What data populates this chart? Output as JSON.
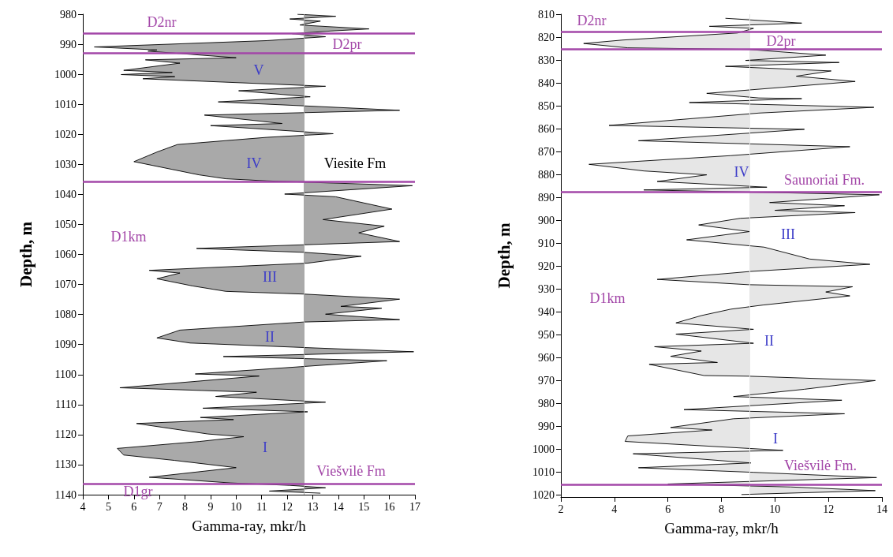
{
  "chart_data": [
    {
      "type": "area",
      "xlabel": "Gamma-ray, mkr/h",
      "ylabel": "Depth, m",
      "xlim": [
        4,
        17
      ],
      "xticks": [
        4,
        5,
        6,
        7,
        8,
        9,
        10,
        11,
        12,
        13,
        14,
        15,
        16,
        17
      ],
      "ylim": [
        1140,
        980
      ],
      "yticks": [
        980,
        990,
        1000,
        1010,
        1020,
        1030,
        1040,
        1050,
        1060,
        1070,
        1080,
        1090,
        1100,
        1110,
        1120,
        1130,
        1140
      ],
      "series": [
        {
          "color": "#a9a9a9",
          "x": [
            12.4,
            13.9,
            12.1,
            13.3,
            12.5,
            15.2,
            13.7,
            12.2,
            13.5,
            11.2,
            4.45,
            6.9,
            6.55,
            10.0,
            6.45,
            7.8,
            5.6,
            7.5,
            5.5,
            7.6,
            6.35,
            12.65,
            13.5,
            10.1,
            12.9,
            9.3,
            16.4,
            8.76,
            11.8,
            9.0,
            13.8,
            11.2,
            7.7,
            6.9,
            6.0,
            8.55,
            9.6,
            11.2,
            16.9,
            11.9,
            13.9,
            16.1,
            13.4,
            15.8,
            14.8,
            16.4,
            8.45,
            12.65,
            14.9,
            12.8,
            6.6,
            7.8,
            6.9,
            8.3,
            9.6,
            12.65,
            16.4,
            14.1,
            15.7,
            13.5,
            16.4,
            12.65,
            7.8,
            6.9,
            8.2,
            12.65,
            16.95,
            9.5,
            15.9,
            12.5,
            8.4,
            10.9,
            9.9,
            5.45,
            10.8,
            9.2,
            13.5,
            8.7,
            12.8,
            8.6,
            9.9,
            6.1,
            8.9,
            10.3,
            8.55,
            5.35,
            5.6,
            7.6,
            10.0,
            6.6,
            9.8,
            12.1,
            13.5,
            11.3,
            13.3
          ],
          "values": [
            980,
            980.7,
            981.6,
            982.3,
            983.6,
            984.9,
            985.6,
            986.5,
            987.5,
            988.8,
            990.9,
            991.9,
            992.3,
            994.5,
            995.2,
            996.3,
            998.7,
            999.4,
            1000.1,
            1000.8,
            1001.5,
            1003.7,
            1004,
            1005.5,
            1007.5,
            1009.2,
            1012,
            1013.6,
            1016.4,
            1017.1,
            1019.8,
            1021,
            1023.4,
            1025.9,
            1029.1,
            1033.5,
            1034.8,
            1035.5,
            1037.1,
            1039.9,
            1040.8,
            1044.9,
            1048.4,
            1050.6,
            1052.8,
            1055.7,
            1058,
            1059.3,
            1060.6,
            1062.9,
            1065.3,
            1066.2,
            1068.1,
            1070.5,
            1072.3,
            1073.2,
            1074.9,
            1077.3,
            1077.9,
            1079.9,
            1081.7,
            1082.5,
            1085.2,
            1087.8,
            1089.5,
            1091,
            1092.4,
            1094,
            1095.4,
            1097.4,
            1099.8,
            1100.5,
            1101.2,
            1104.4,
            1105.9,
            1107.3,
            1109.2,
            1111.2,
            1112.4,
            1114.3,
            1115,
            1116.3,
            1119.8,
            1120.7,
            1122.3,
            1124.6,
            1126.8,
            1128.6,
            1131,
            1134.2,
            1136.1,
            1136.9,
            1137.7,
            1138.8,
            1139.5
          ]
        }
      ],
      "ref_lines": [
        {
          "axis": "x",
          "value": 12.65,
          "color": "#a9a9a9"
        },
        {
          "axis": "y",
          "value": 986.3,
          "color": "#a347a8"
        },
        {
          "axis": "y",
          "value": 993,
          "color": "#a347a8"
        },
        {
          "axis": "y",
          "value": 1035.7,
          "color": "#a347a8"
        },
        {
          "axis": "y",
          "value": 1136.4,
          "color": "#a347a8"
        }
      ],
      "annotations": [
        "D2nr",
        "D2pr",
        "V",
        "IV",
        "Viesite Fm",
        "D1km",
        "III",
        "II",
        "I",
        "Viešvilė Fm",
        "D1gr"
      ]
    },
    {
      "type": "area",
      "xlabel": "Gamma-ray, mkr/h",
      "ylabel": "Depth, m",
      "xlim": [
        2,
        14
      ],
      "xticks": [
        2,
        4,
        6,
        8,
        10,
        12,
        14
      ],
      "ylim": [
        1021,
        810
      ],
      "yticks": [
        810,
        820,
        830,
        840,
        850,
        860,
        870,
        880,
        890,
        900,
        910,
        920,
        930,
        940,
        950,
        960,
        970,
        980,
        990,
        1000,
        1010,
        1020
      ],
      "series": [
        {
          "color": "#e6e6e6",
          "x": [
            8.15,
            11.0,
            7.55,
            9.2,
            8.6,
            4.3,
            2.85,
            4.5,
            9.0,
            11.9,
            8.9,
            12.4,
            8.15,
            12.1,
            10.8,
            13.0,
            7.45,
            9.4,
            11.0,
            6.8,
            13.7,
            9.4,
            3.8,
            11.1,
            4.9,
            12.8,
            8.35,
            3.05,
            5.1,
            7.45,
            5.6,
            9.7,
            5.1,
            13.9,
            9.8,
            12.6,
            10.0,
            13.0,
            8.7,
            7.15,
            9.05,
            6.7,
            9.6,
            11.3,
            13.55,
            9.1,
            5.6,
            9.0,
            12.9,
            11.9,
            12.8,
            9.55,
            8.35,
            7.25,
            6.3,
            9.2,
            6.3,
            9.2,
            5.5,
            7.25,
            6.1,
            7.85,
            5.3,
            7.35,
            9.05,
            13.75,
            11.1,
            8.45,
            12.5,
            6.6,
            12.6,
            8.45,
            6.1,
            7.65,
            4.5,
            4.4,
            10.3,
            4.7,
            9.1,
            4.9,
            9.2,
            13.8,
            6.0,
            10.6,
            13.75,
            8.75
          ],
          "values": [
            811.8,
            813.9,
            815.3,
            816.2,
            818.2,
            821.3,
            822.8,
            824.7,
            825.4,
            827.9,
            830.2,
            831.1,
            832.8,
            834.8,
            837.1,
            839.4,
            844.6,
            846.6,
            846.9,
            848.6,
            850.7,
            853.2,
            858.6,
            860.3,
            865.3,
            867.9,
            871.8,
            875.6,
            878.5,
            880.2,
            883.1,
            885.6,
            886.8,
            888.9,
            892.3,
            893.7,
            895.7,
            896.7,
            899.2,
            902.1,
            905,
            908.6,
            911.8,
            917,
            919.3,
            922.4,
            925.9,
            928.2,
            929.1,
            931.4,
            933.1,
            937.1,
            938.9,
            941.7,
            944.9,
            947.7,
            949.8,
            953.8,
            955.3,
            957.2,
            959.5,
            962.2,
            963,
            967.9,
            968.2,
            970.1,
            973.9,
            977.1,
            978.7,
            982.8,
            984.6,
            986.8,
            990.6,
            991.7,
            994.3,
            996.7,
            1000.6,
            1002.1,
            1006.1,
            1008.2,
            1010.2,
            1012.5,
            1015.3,
            1016.6,
            1018.2,
            1019.9
          ]
        }
      ],
      "ref_lines": [
        {
          "axis": "x",
          "value": 9.05,
          "color": "#e6e6e6"
        },
        {
          "axis": "y",
          "value": 817.7,
          "color": "#a347a8"
        },
        {
          "axis": "y",
          "value": 825.2,
          "color": "#a347a8"
        },
        {
          "axis": "y",
          "value": 887.8,
          "color": "#a347a8"
        },
        {
          "axis": "y",
          "value": 1015.7,
          "color": "#a347a8"
        }
      ],
      "annotations": [
        "D2nr",
        "D2pr",
        "IV",
        "Saunoriai Fm.",
        "III",
        "D1km",
        "II",
        "I",
        "Viešvilė Fm."
      ]
    }
  ]
}
